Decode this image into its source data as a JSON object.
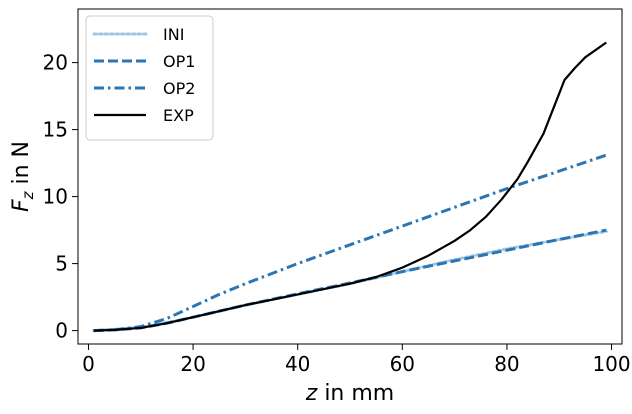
{
  "chart_data": {
    "type": "line",
    "xlabel": "z in mm",
    "ylabel": "F_z in N",
    "xlim": [
      -2,
      102
    ],
    "ylim": [
      -1,
      24
    ],
    "xticks": [
      0,
      20,
      40,
      60,
      80,
      100
    ],
    "xtick_labels": [
      "0",
      "20",
      "40",
      "60",
      "80",
      "100"
    ],
    "yticks": [
      0,
      5,
      10,
      15,
      20
    ],
    "ytick_labels": [
      "0",
      "5",
      "10",
      "15",
      "20"
    ],
    "legend_position": "top-left",
    "series": [
      {
        "name": "INI",
        "color": "#9ec5e1",
        "dash": "dotted",
        "x": [
          1,
          5,
          10,
          15,
          20,
          30,
          40,
          50,
          60,
          70,
          80,
          90,
          99
        ],
        "y": [
          0.0,
          0.1,
          0.25,
          0.6,
          1.0,
          1.9,
          2.7,
          3.5,
          4.4,
          5.3,
          6.1,
          6.8,
          7.4
        ]
      },
      {
        "name": "OP1",
        "color": "#2a76b4",
        "dash": "dashed",
        "x": [
          1,
          5,
          10,
          15,
          20,
          30,
          40,
          50,
          60,
          70,
          80,
          90,
          99
        ],
        "y": [
          0.0,
          0.05,
          0.2,
          0.55,
          1.0,
          1.9,
          2.75,
          3.55,
          4.4,
          5.2,
          6.0,
          6.8,
          7.5
        ]
      },
      {
        "name": "OP2",
        "color": "#2a76b4",
        "dash": "dashdot",
        "x": [
          1,
          5,
          10,
          15,
          20,
          25,
          30,
          40,
          50,
          60,
          70,
          80,
          90,
          99
        ],
        "y": [
          0.0,
          0.05,
          0.3,
          0.9,
          1.8,
          2.7,
          3.5,
          5.0,
          6.4,
          7.8,
          9.2,
          10.6,
          11.9,
          13.1
        ]
      },
      {
        "name": "EXP",
        "color": "#000000",
        "dash": "solid",
        "x": [
          1,
          5,
          10,
          15,
          20,
          25,
          30,
          35,
          40,
          45,
          50,
          55,
          60,
          65,
          70,
          73,
          76,
          79,
          82,
          84,
          87,
          89,
          91,
          93,
          95,
          99
        ],
        "y": [
          0.0,
          0.05,
          0.2,
          0.55,
          1.0,
          1.45,
          1.9,
          2.3,
          2.7,
          3.1,
          3.5,
          4.0,
          4.7,
          5.6,
          6.7,
          7.5,
          8.5,
          9.8,
          11.3,
          12.6,
          14.7,
          16.7,
          18.7,
          19.6,
          20.4,
          21.5
        ]
      }
    ]
  }
}
